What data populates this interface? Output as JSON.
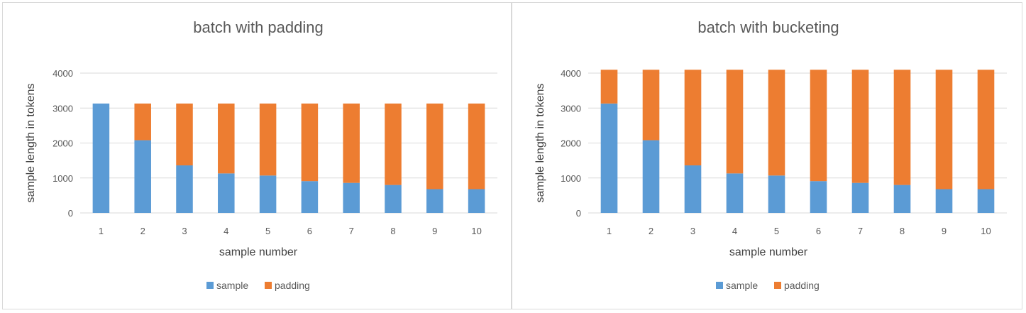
{
  "colors": {
    "sample": "#5b9bd5",
    "padding": "#ed7d31"
  },
  "chart_data": [
    {
      "type": "bar",
      "stacked": true,
      "title": "batch with padding",
      "xlabel": "sample number",
      "ylabel": "sample length in tokens",
      "categories": [
        "1",
        "2",
        "3",
        "4",
        "5",
        "6",
        "7",
        "8",
        "9",
        "10"
      ],
      "ylim": [
        0,
        4000
      ],
      "yticks": [
        "0",
        "1000",
        "2000",
        "3000",
        "4000"
      ],
      "grid": true,
      "legend_position": "bottom",
      "series": [
        {
          "name": "sample",
          "values": [
            3130,
            2080,
            1360,
            1130,
            1070,
            910,
            860,
            800,
            680,
            680
          ]
        },
        {
          "name": "padding",
          "values": [
            0,
            1050,
            1770,
            2000,
            2060,
            2220,
            2270,
            2330,
            2450,
            2450
          ]
        }
      ]
    },
    {
      "type": "bar",
      "stacked": true,
      "title": "batch with bucketing",
      "xlabel": "sample number",
      "ylabel": "sample length in tokens",
      "categories": [
        "1",
        "2",
        "3",
        "4",
        "5",
        "6",
        "7",
        "8",
        "9",
        "10"
      ],
      "ylim": [
        0,
        4000
      ],
      "yticks": [
        "0",
        "1000",
        "2000",
        "3000",
        "4000"
      ],
      "grid": true,
      "legend_position": "bottom",
      "series": [
        {
          "name": "sample",
          "values": [
            3130,
            2080,
            1360,
            1130,
            1070,
            910,
            860,
            800,
            680,
            680
          ]
        },
        {
          "name": "padding",
          "values": [
            966,
            2016,
            2736,
            2966,
            3026,
            3186,
            3236,
            3296,
            3416,
            3416
          ]
        }
      ]
    }
  ]
}
